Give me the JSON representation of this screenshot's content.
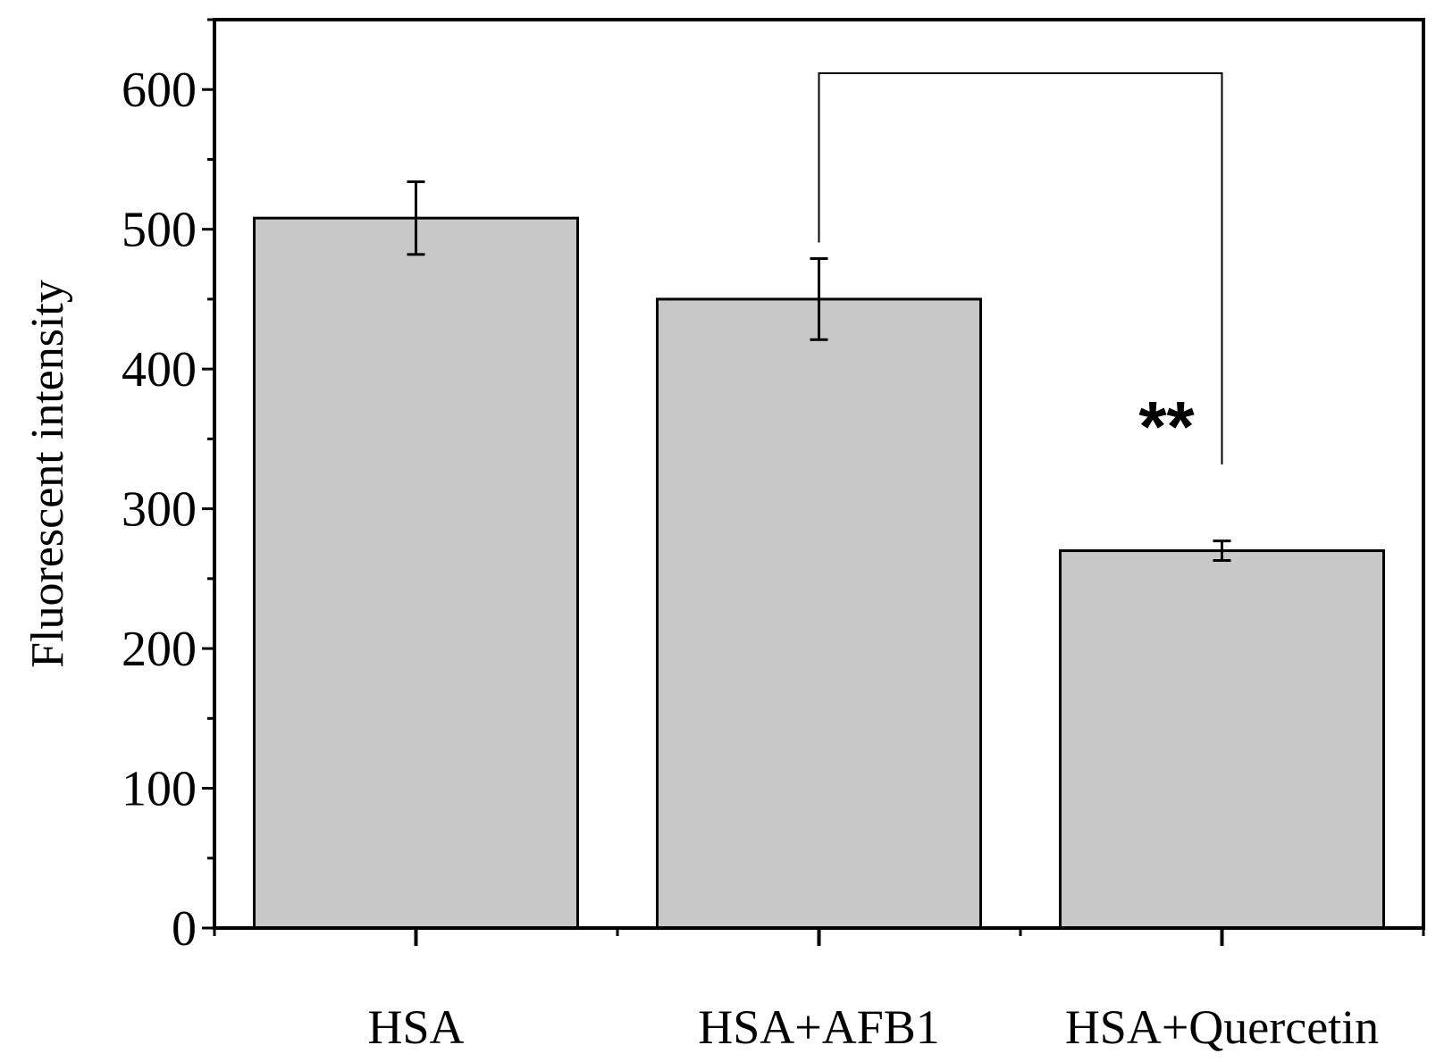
{
  "chart_data": {
    "type": "bar",
    "title": "",
    "xlabel": "",
    "ylabel": "Fluorescent intensity",
    "categories": [
      "HSA",
      "HSA+AFB1",
      "HSA+Quercetin"
    ],
    "values": [
      508,
      450,
      270
    ],
    "errors": [
      26,
      29,
      7
    ],
    "ylim": [
      0,
      650
    ],
    "yticks": [
      "0",
      "100",
      "200",
      "300",
      "400",
      "500",
      "600"
    ],
    "grid": false,
    "bar_color": "#c8c8c8",
    "significance": {
      "from_category": "HSA+AFB1",
      "to_category": "HSA+Quercetin",
      "label": "**"
    }
  }
}
